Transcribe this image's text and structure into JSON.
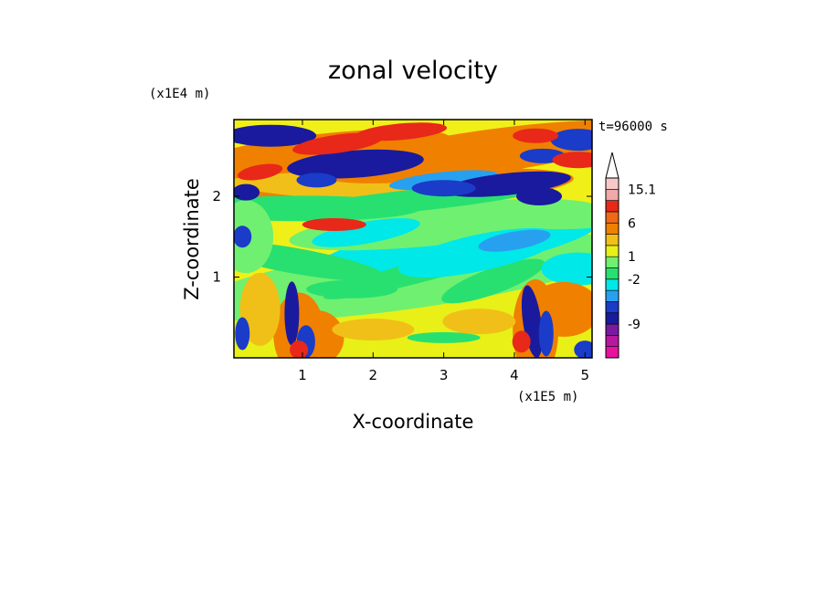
{
  "chart_data": {
    "type": "heatmap",
    "title": "zonal velocity",
    "xlabel": "X-coordinate",
    "ylabel": "Z-coordinate",
    "x_unit_label": "(x1E5 m)",
    "y_unit_label": "(x1E4 m)",
    "time_label": "t=96000 s",
    "xlim": [
      0.03,
      5.1
    ],
    "ylim": [
      0.0,
      2.95
    ],
    "x_ticks": [
      "1",
      "2",
      "3",
      "4",
      "5"
    ],
    "x_tick_values": [
      1,
      2,
      3,
      4,
      5
    ],
    "y_ticks": [
      "1",
      "2"
    ],
    "y_tick_values": [
      1,
      2
    ],
    "colorbar": {
      "labels": [
        "15.1",
        "6",
        "1",
        "-2",
        "-9"
      ],
      "label_values": [
        15.1,
        6,
        1,
        -2,
        -9
      ],
      "colors": [
        "#e8129e",
        "#b8189e",
        "#7a1aa0",
        "#1a1a9e",
        "#1a3cc8",
        "#28a0f0",
        "#00e8e8",
        "#28e070",
        "#70f070",
        "#e8f018",
        "#f0c018",
        "#f08000",
        "#f06818",
        "#e82818",
        "#f0a8a8",
        "#f8c8c8"
      ],
      "extend": "max"
    },
    "field_description_levels": [
      -12,
      -9,
      -6,
      -3,
      -2,
      0,
      1,
      2,
      3,
      4,
      6,
      10,
      15.1
    ]
  },
  "colors": {
    "background": "#ffffff",
    "axes": "#000000"
  }
}
